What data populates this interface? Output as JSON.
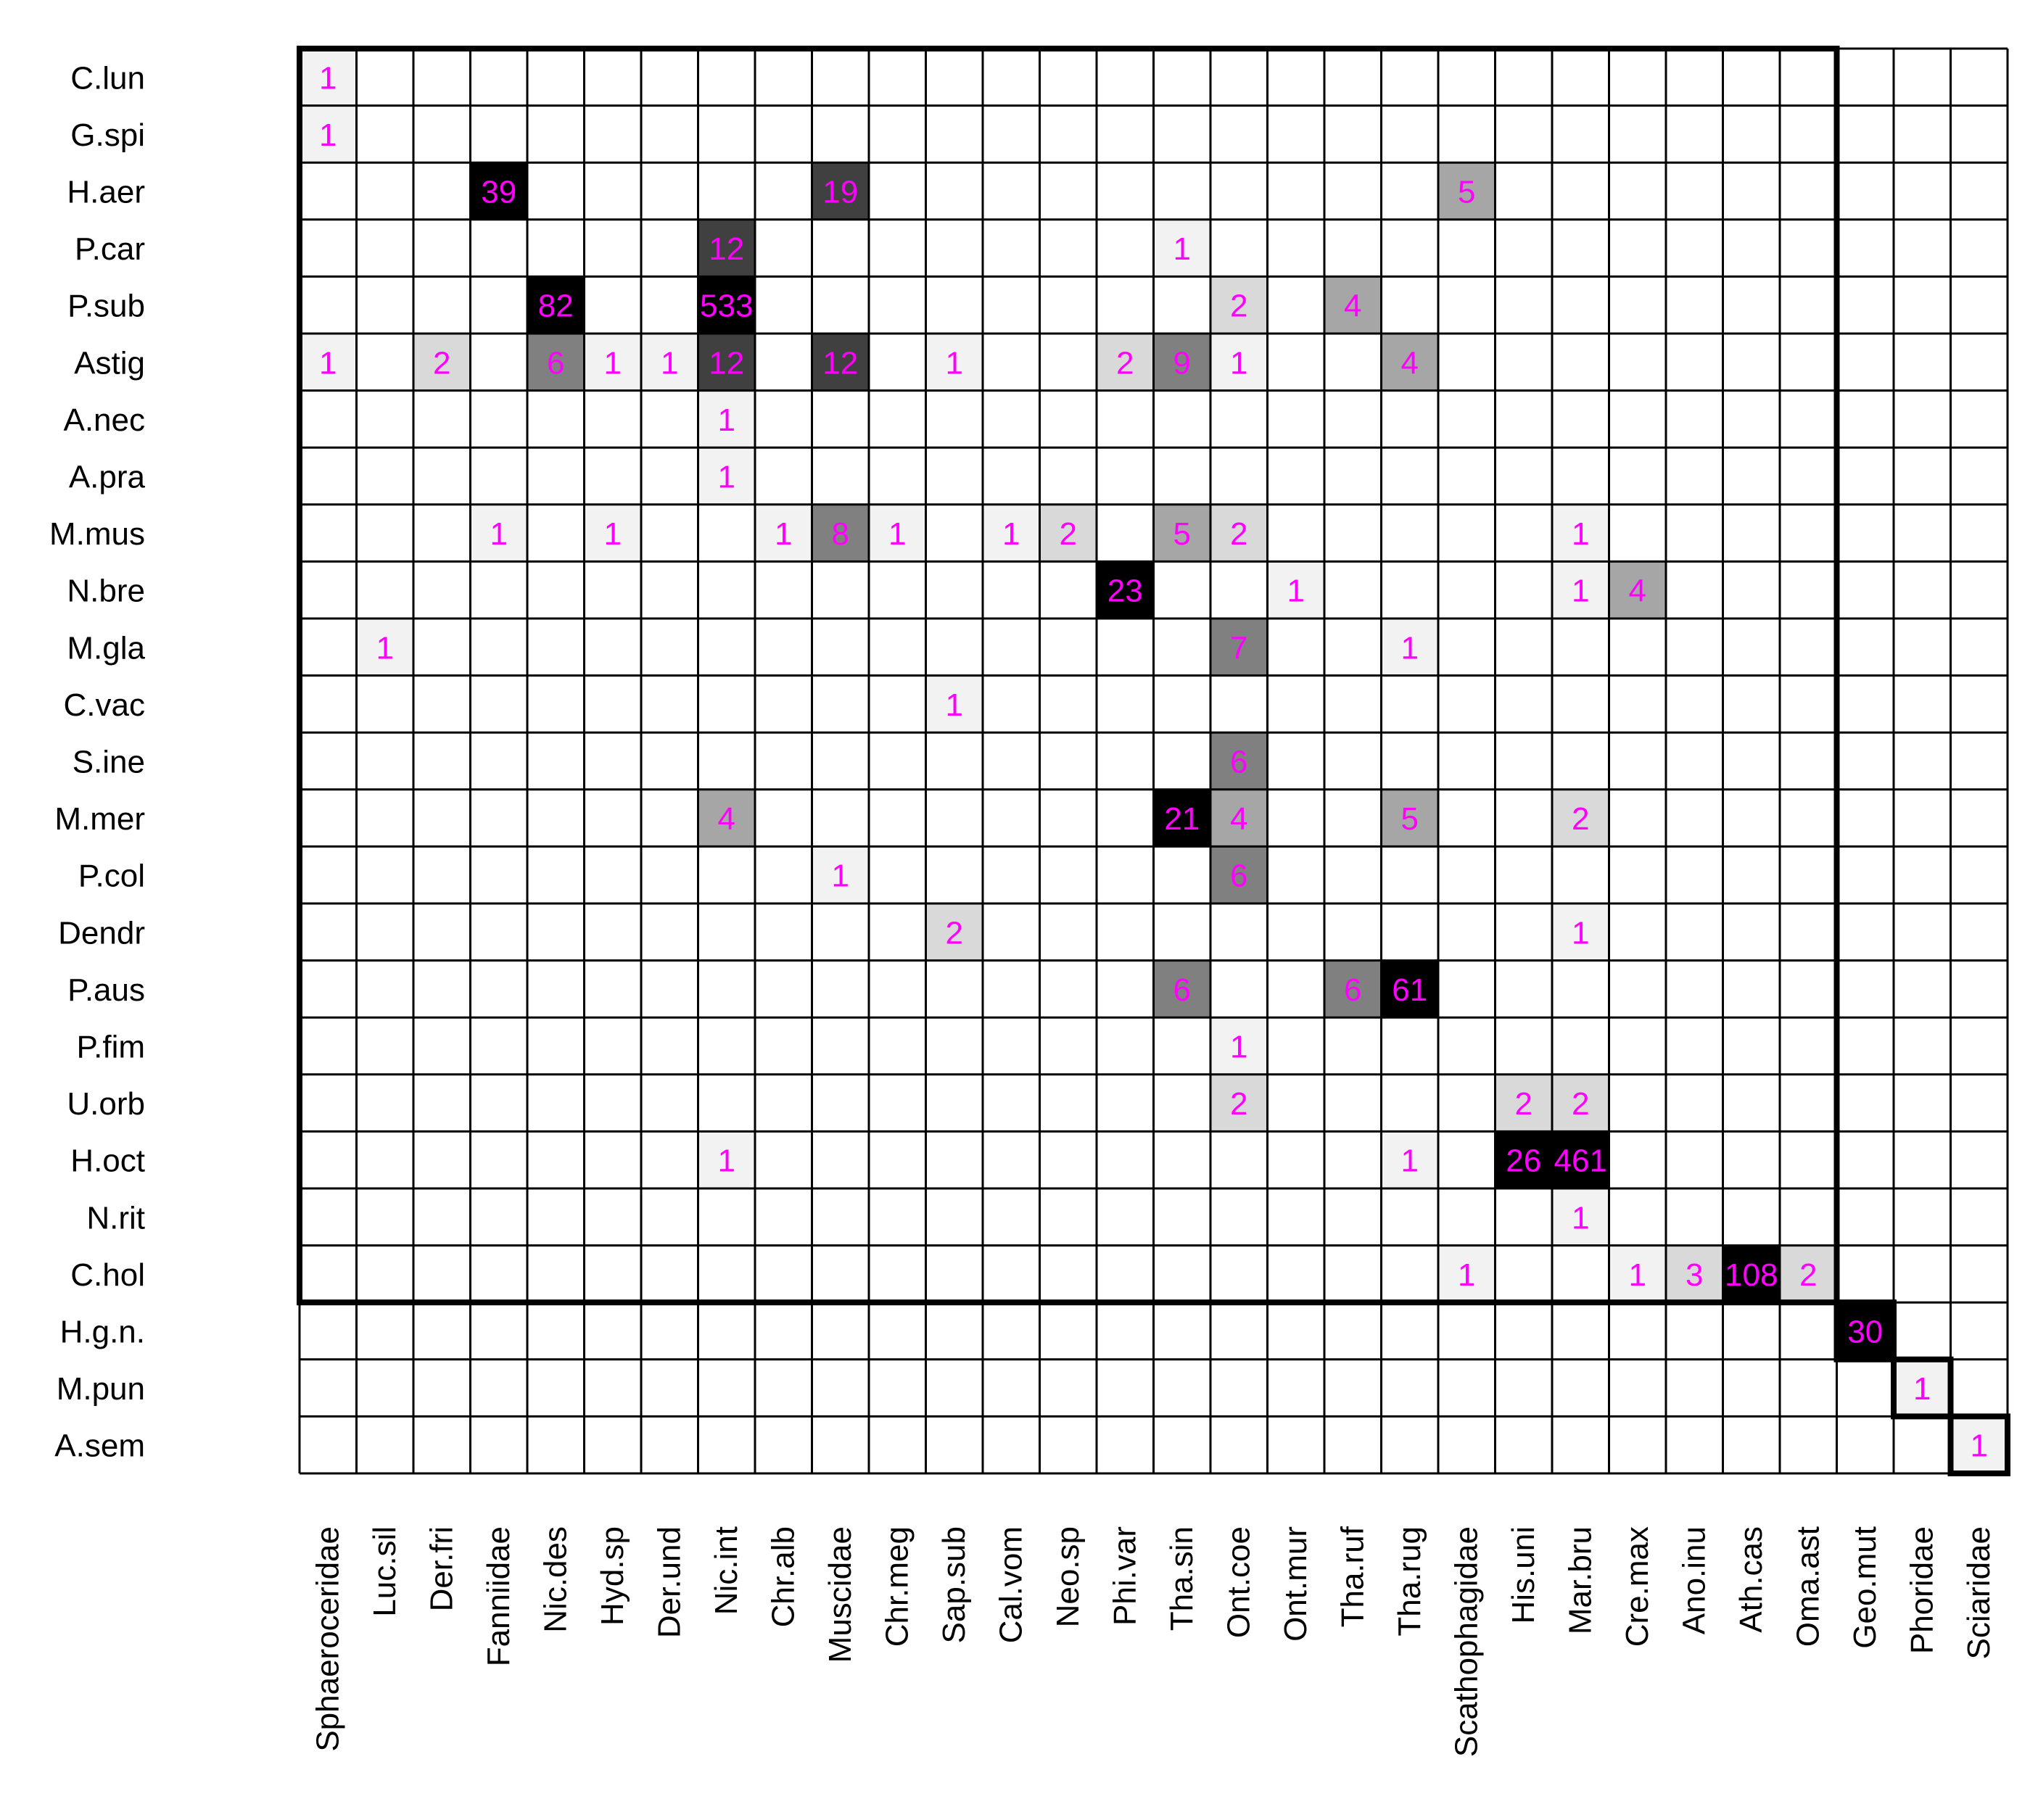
{
  "chart_data": {
    "type": "heatmap",
    "title": "",
    "rows": [
      "C.lun",
      "G.spi",
      "H.aer",
      "P.car",
      "P.sub",
      "Astig",
      "A.nec",
      "A.pra",
      "M.mus",
      "N.bre",
      "M.gla",
      "C.vac",
      "S.ine",
      "M.mer",
      "P.col",
      "Dendr",
      "P.aus",
      "P.fim",
      "U.orb",
      "H.oct",
      "N.rit",
      "C.hol",
      "H.g.n.",
      "M.pun",
      "A.sem"
    ],
    "columns": [
      "Sphaeroceridae",
      "Luc.sil",
      "Der.fri",
      "Fanniidae",
      "Nic.des",
      "Hyd.sp",
      "Der.und",
      "Nic.int",
      "Chr.alb",
      "Muscidae",
      "Chr.meg",
      "Sap.sub",
      "Cal.vom",
      "Neo.sp",
      "Phi.var",
      "Tha.sin",
      "Ont.coe",
      "Ont.mur",
      "Tha.ruf",
      "Tha.rug",
      "Scathophagidae",
      "His.uni",
      "Mar.bru",
      "Cre.max",
      "Ano.inu",
      "Ath.cas",
      "Oma.ast",
      "Geo.mut",
      "Phoridae",
      "Sciaridae"
    ],
    "cells": [
      {
        "row": 0,
        "col": 0,
        "value": 1
      },
      {
        "row": 1,
        "col": 0,
        "value": 1
      },
      {
        "row": 2,
        "col": 3,
        "value": 39
      },
      {
        "row": 2,
        "col": 9,
        "value": 19
      },
      {
        "row": 2,
        "col": 20,
        "value": 5
      },
      {
        "row": 3,
        "col": 7,
        "value": 12
      },
      {
        "row": 3,
        "col": 15,
        "value": 1
      },
      {
        "row": 4,
        "col": 4,
        "value": 82
      },
      {
        "row": 4,
        "col": 7,
        "value": 533
      },
      {
        "row": 4,
        "col": 16,
        "value": 2
      },
      {
        "row": 4,
        "col": 18,
        "value": 4
      },
      {
        "row": 5,
        "col": 0,
        "value": 1
      },
      {
        "row": 5,
        "col": 2,
        "value": 2
      },
      {
        "row": 5,
        "col": 4,
        "value": 6
      },
      {
        "row": 5,
        "col": 5,
        "value": 1
      },
      {
        "row": 5,
        "col": 6,
        "value": 1
      },
      {
        "row": 5,
        "col": 7,
        "value": 12
      },
      {
        "row": 5,
        "col": 9,
        "value": 12
      },
      {
        "row": 5,
        "col": 11,
        "value": 1
      },
      {
        "row": 5,
        "col": 14,
        "value": 2
      },
      {
        "row": 5,
        "col": 15,
        "value": 9
      },
      {
        "row": 5,
        "col": 16,
        "value": 1
      },
      {
        "row": 5,
        "col": 19,
        "value": 4
      },
      {
        "row": 6,
        "col": 7,
        "value": 1
      },
      {
        "row": 7,
        "col": 7,
        "value": 1
      },
      {
        "row": 8,
        "col": 3,
        "value": 1
      },
      {
        "row": 8,
        "col": 5,
        "value": 1
      },
      {
        "row": 8,
        "col": 8,
        "value": 1
      },
      {
        "row": 8,
        "col": 9,
        "value": 8
      },
      {
        "row": 8,
        "col": 10,
        "value": 1
      },
      {
        "row": 8,
        "col": 12,
        "value": 1
      },
      {
        "row": 8,
        "col": 13,
        "value": 2
      },
      {
        "row": 8,
        "col": 15,
        "value": 5
      },
      {
        "row": 8,
        "col": 16,
        "value": 2
      },
      {
        "row": 8,
        "col": 22,
        "value": 1
      },
      {
        "row": 9,
        "col": 14,
        "value": 23
      },
      {
        "row": 9,
        "col": 17,
        "value": 1
      },
      {
        "row": 9,
        "col": 22,
        "value": 1
      },
      {
        "row": 9,
        "col": 23,
        "value": 4
      },
      {
        "row": 10,
        "col": 1,
        "value": 1
      },
      {
        "row": 10,
        "col": 16,
        "value": 7
      },
      {
        "row": 10,
        "col": 19,
        "value": 1
      },
      {
        "row": 11,
        "col": 11,
        "value": 1
      },
      {
        "row": 12,
        "col": 16,
        "value": 6
      },
      {
        "row": 13,
        "col": 7,
        "value": 4
      },
      {
        "row": 13,
        "col": 15,
        "value": 21
      },
      {
        "row": 13,
        "col": 16,
        "value": 4
      },
      {
        "row": 13,
        "col": 19,
        "value": 5
      },
      {
        "row": 13,
        "col": 22,
        "value": 2
      },
      {
        "row": 14,
        "col": 9,
        "value": 1
      },
      {
        "row": 14,
        "col": 16,
        "value": 6
      },
      {
        "row": 15,
        "col": 11,
        "value": 2
      },
      {
        "row": 15,
        "col": 22,
        "value": 1
      },
      {
        "row": 16,
        "col": 15,
        "value": 6
      },
      {
        "row": 16,
        "col": 18,
        "value": 6
      },
      {
        "row": 16,
        "col": 19,
        "value": 61
      },
      {
        "row": 17,
        "col": 16,
        "value": 1
      },
      {
        "row": 18,
        "col": 16,
        "value": 2
      },
      {
        "row": 18,
        "col": 21,
        "value": 2
      },
      {
        "row": 18,
        "col": 22,
        "value": 2
      },
      {
        "row": 19,
        "col": 7,
        "value": 1
      },
      {
        "row": 19,
        "col": 19,
        "value": 1
      },
      {
        "row": 19,
        "col": 21,
        "value": 26
      },
      {
        "row": 19,
        "col": 22,
        "value": 461
      },
      {
        "row": 20,
        "col": 22,
        "value": 1
      },
      {
        "row": 21,
        "col": 20,
        "value": 1
      },
      {
        "row": 21,
        "col": 23,
        "value": 1
      },
      {
        "row": 21,
        "col": 24,
        "value": 3
      },
      {
        "row": 21,
        "col": 25,
        "value": 108
      },
      {
        "row": 21,
        "col": 26,
        "value": 2
      },
      {
        "row": 22,
        "col": 27,
        "value": 30
      },
      {
        "row": 23,
        "col": 28,
        "value": 1
      },
      {
        "row": 24,
        "col": 29,
        "value": 1
      }
    ],
    "modules": [
      {
        "row_start": 0,
        "row_end": 21,
        "col_start": 0,
        "col_end": 26
      },
      {
        "row_start": 22,
        "row_end": 22,
        "col_start": 27,
        "col_end": 27
      },
      {
        "row_start": 23,
        "row_end": 23,
        "col_start": 28,
        "col_end": 28
      },
      {
        "row_start": 24,
        "row_end": 24,
        "col_start": 29,
        "col_end": 29
      }
    ],
    "shade_thresholds": [
      2,
      4,
      6,
      10,
      20
    ],
    "shade_colors": [
      "#ffffff",
      "#f2f2f2",
      "#d9d9d9",
      "#a6a6a6",
      "#808080",
      "#404040",
      "#000000"
    ],
    "value_color": "#ff00ff",
    "grid_color": "#000000"
  }
}
